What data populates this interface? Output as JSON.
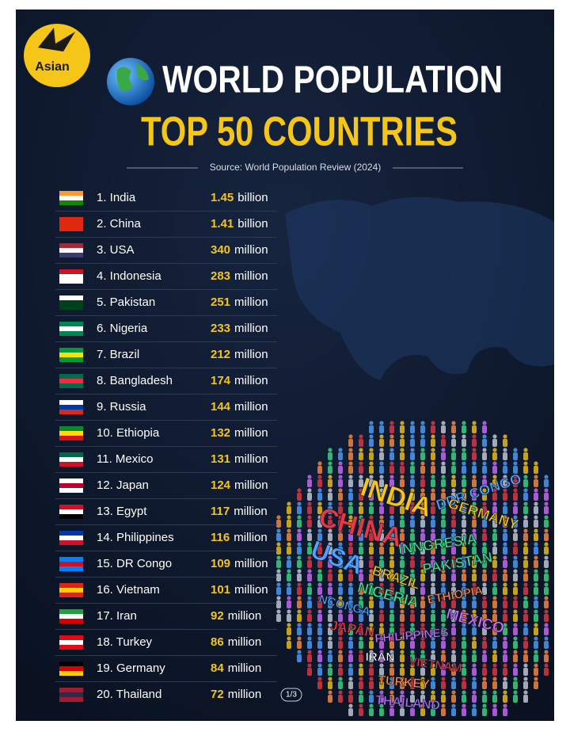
{
  "logo": "Asian",
  "title": "WORLD POPULATION",
  "subtitle": "TOP 50 COUNTRIES",
  "source": "Source: World Population Review (2024)",
  "rows": [
    {
      "country": "1. India",
      "value": 1.45,
      "unit": "billion",
      "flag": [
        "#ff9933",
        "#ffffff",
        "#138808"
      ]
    },
    {
      "country": "2. China",
      "value": 1.41,
      "unit": "billion",
      "flag": [
        "#de2910",
        "#de2910",
        "#de2910"
      ]
    },
    {
      "country": "3. USA",
      "value": 340,
      "unit": "million",
      "flag": [
        "#b22234",
        "#ffffff",
        "#3c3b6e"
      ]
    },
    {
      "country": "4. Indonesia",
      "value": 283,
      "unit": "million",
      "flag": [
        "#ce1126",
        "#ffffff",
        "#ffffff"
      ]
    },
    {
      "country": "5. Pakistan",
      "value": 251,
      "unit": "million",
      "flag": [
        "#ffffff",
        "#01411c",
        "#01411c"
      ]
    },
    {
      "country": "6. Nigeria",
      "value": 233,
      "unit": "million",
      "flag": [
        "#008751",
        "#ffffff",
        "#008751"
      ]
    },
    {
      "country": "7. Brazil",
      "value": 212,
      "unit": "million",
      "flag": [
        "#009c3b",
        "#ffdf00",
        "#009c3b"
      ]
    },
    {
      "country": "8. Bangladesh",
      "value": 174,
      "unit": "million",
      "flag": [
        "#006a4e",
        "#f42a41",
        "#006a4e"
      ]
    },
    {
      "country": "9. Russia",
      "value": 144,
      "unit": "million",
      "flag": [
        "#ffffff",
        "#0039a6",
        "#d52b1e"
      ]
    },
    {
      "country": "10. Ethiopia",
      "value": 132,
      "unit": "million",
      "flag": [
        "#078930",
        "#fcdd09",
        "#da121a"
      ]
    },
    {
      "country": "11. Mexico",
      "value": 131,
      "unit": "million",
      "flag": [
        "#006847",
        "#ffffff",
        "#ce1126"
      ]
    },
    {
      "country": "12. Japan",
      "value": 124,
      "unit": "million",
      "flag": [
        "#ffffff",
        "#bc002d",
        "#ffffff"
      ]
    },
    {
      "country": "13. Egypt",
      "value": 117,
      "unit": "million",
      "flag": [
        "#ce1126",
        "#ffffff",
        "#000000"
      ]
    },
    {
      "country": "14. Philippines",
      "value": 116,
      "unit": "million",
      "flag": [
        "#0038a8",
        "#ffffff",
        "#ce1126"
      ]
    },
    {
      "country": "15. DR Congo",
      "value": 109,
      "unit": "million",
      "flag": [
        "#007fff",
        "#ce1021",
        "#007fff"
      ]
    },
    {
      "country": "16. Vietnam",
      "value": 101,
      "unit": "million",
      "flag": [
        "#da251d",
        "#ffcd00",
        "#da251d"
      ]
    },
    {
      "country": "17. Iran",
      "value": 92,
      "unit": "million",
      "flag": [
        "#239f40",
        "#ffffff",
        "#da0000"
      ]
    },
    {
      "country": "18. Turkey",
      "value": 86,
      "unit": "million",
      "flag": [
        "#e30a17",
        "#ffffff",
        "#e30a17"
      ]
    },
    {
      "country": "19. Germany",
      "value": 84,
      "unit": "million",
      "flag": [
        "#000000",
        "#dd0000",
        "#ffce00"
      ]
    },
    {
      "country": "20. Thailand",
      "value": 72,
      "unit": "million",
      "flag": [
        "#a51931",
        "#2d2a4a",
        "#a51931"
      ]
    }
  ],
  "page_indicator": "1/3",
  "word_cloud": [
    {
      "word": "INDIA",
      "color": "#f5c518"
    },
    {
      "word": "DDR CONGO",
      "color": "#4da3ff"
    },
    {
      "word": "GERMANY",
      "color": "#f5c518"
    },
    {
      "word": "CHINA",
      "color": "#e63946"
    },
    {
      "word": "INNGRESIA",
      "color": "#3ddc84"
    },
    {
      "word": "PAKISTAN",
      "color": "#3ddc84"
    },
    {
      "word": "USA",
      "color": "#4da3ff"
    },
    {
      "word": "BRAZIL",
      "color": "#f5c518"
    },
    {
      "word": "NIGERIA",
      "color": "#3ddc84"
    },
    {
      "word": "ETHIOPIA",
      "color": "#ff8c42"
    },
    {
      "word": "NCONGA",
      "color": "#4da3ff"
    },
    {
      "word": "MEXICO",
      "color": "#d16bff"
    },
    {
      "word": "JAPAN",
      "color": "#e63946"
    },
    {
      "word": "PHILIPPINES",
      "color": "#d16bff"
    },
    {
      "word": "IRAN",
      "color": "#ffffff"
    },
    {
      "word": "VIETNAM",
      "color": "#e63946"
    },
    {
      "word": "TURKEY",
      "color": "#ff8c42"
    },
    {
      "word": "THAILAND",
      "color": "#b06bff"
    }
  ]
}
